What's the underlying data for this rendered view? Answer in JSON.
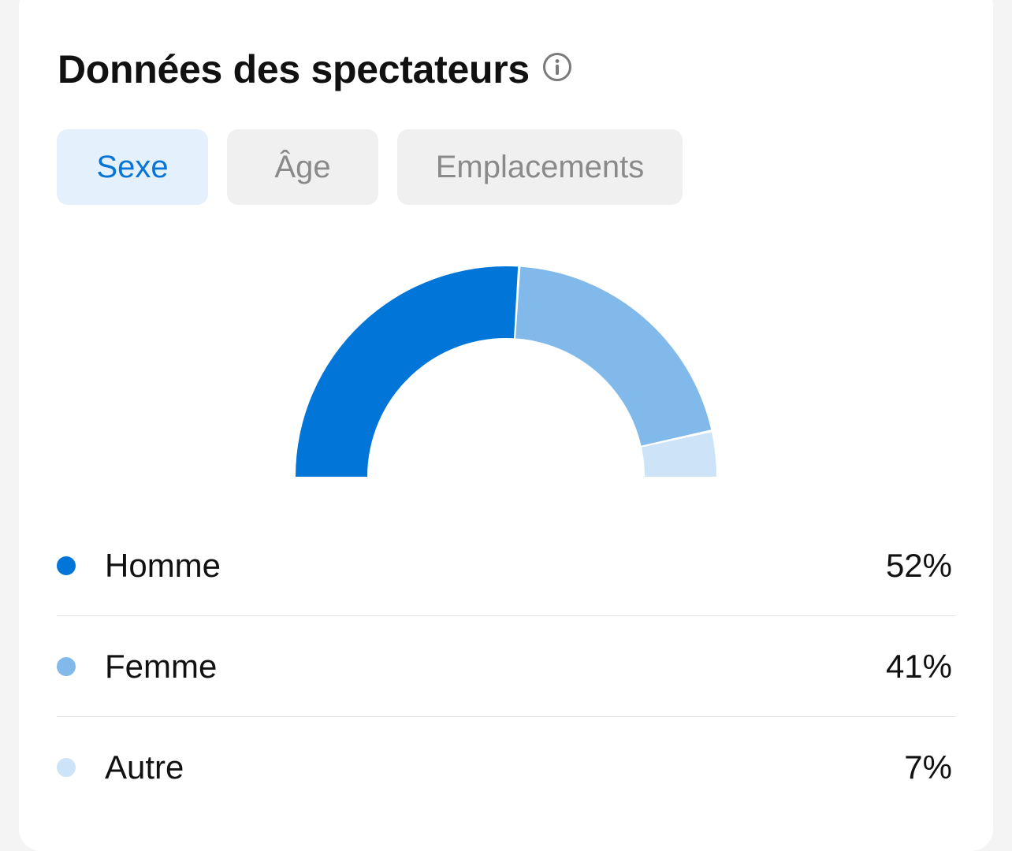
{
  "header": {
    "title": "Données des spectateurs",
    "info_icon": "info-circle-icon"
  },
  "tabs": [
    {
      "label": "Sexe",
      "active": true
    },
    {
      "label": "Âge",
      "active": false
    },
    {
      "label": "Emplacements",
      "active": false
    }
  ],
  "colors": {
    "homme": "#0275d8",
    "femme": "#80b9ea",
    "autre": "#cde3f7",
    "accent": "#0675d6"
  },
  "chart_data": {
    "type": "pie",
    "style": "semi-donut",
    "categories": [
      "Homme",
      "Femme",
      "Autre"
    ],
    "values": [
      52,
      41,
      7
    ],
    "unit": "%"
  },
  "legend": [
    {
      "label": "Homme",
      "value": "52%",
      "color": "#0275d8"
    },
    {
      "label": "Femme",
      "value": "41%",
      "color": "#80b9ea"
    },
    {
      "label": "Autre",
      "value": "7%",
      "color": "#cde3f7"
    }
  ]
}
